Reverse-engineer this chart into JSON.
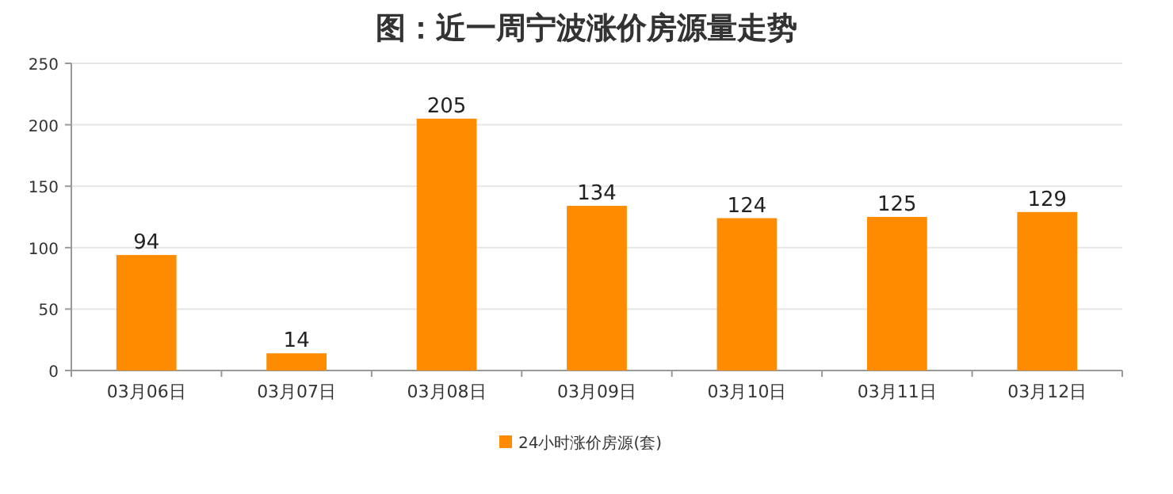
{
  "chart_data": {
    "type": "bar",
    "title": "图：近一周宁波涨价房源量走势",
    "categories": [
      "03月06日",
      "03月07日",
      "03月08日",
      "03月09日",
      "03月10日",
      "03月11日",
      "03月12日"
    ],
    "series": [
      {
        "name": "24小时涨价房源(套)",
        "color": "#ff8c00",
        "values": [
          94,
          14,
          205,
          134,
          124,
          125,
          129
        ]
      }
    ],
    "ylim": [
      0,
      250
    ],
    "yticks": [
      0,
      50,
      100,
      150,
      200,
      250
    ],
    "grid": "y",
    "legend": "bottom",
    "data_labels": true
  }
}
